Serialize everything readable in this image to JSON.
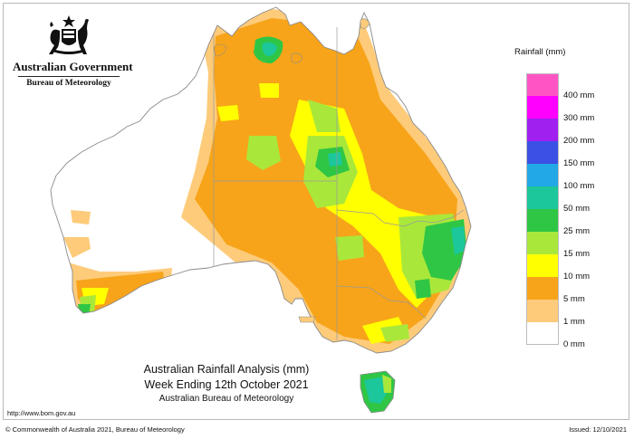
{
  "logo": {
    "government": "Australian Government",
    "bureau": "Bureau of Meteorology"
  },
  "legend": {
    "title": "Rainfall (mm)",
    "items": [
      {
        "label": "400 mm",
        "color": "#ff55c4"
      },
      {
        "label": "300 mm",
        "color": "#ff00ff"
      },
      {
        "label": "200 mm",
        "color": "#a020f0"
      },
      {
        "label": "150 mm",
        "color": "#3b50e5"
      },
      {
        "label": "100 mm",
        "color": "#22a8e6"
      },
      {
        "label": "50 mm",
        "color": "#1bc79b"
      },
      {
        "label": "25 mm",
        "color": "#2fc645"
      },
      {
        "label": "15 mm",
        "color": "#a9e83a"
      },
      {
        "label": "10 mm",
        "color": "#ffff00"
      },
      {
        "label": "5 mm",
        "color": "#f7a41a"
      },
      {
        "label": "1 mm",
        "color": "#fdcb7a"
      },
      {
        "label": "0 mm",
        "color": "#ffffff"
      }
    ]
  },
  "map": {
    "land_color": "#ffffff",
    "outline_color": "#8a8a8a"
  },
  "title": {
    "line1": "Australian Rainfall Analysis (mm)",
    "line2": "Week Ending 12th October 2021",
    "line3": "Australian Bureau of Meteorology"
  },
  "url": "http://www.bom.gov.au",
  "footer": {
    "copyright": "© Commonwealth of Australia 2021, Bureau of Meteorology",
    "issued": "Issued: 12/10/2021"
  }
}
